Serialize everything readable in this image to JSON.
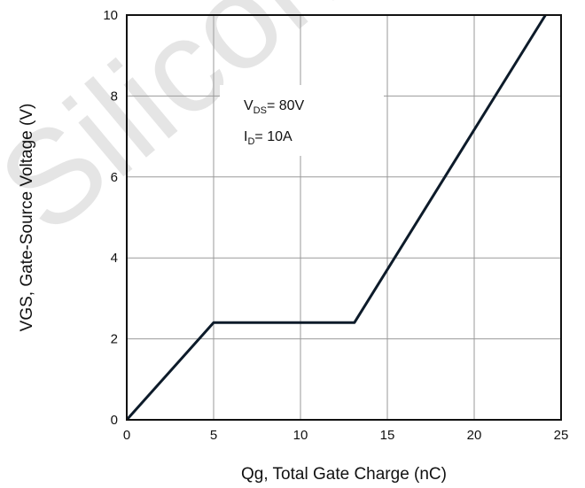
{
  "chart_data": {
    "type": "line",
    "xlabel": "Qg, Total Gate Charge (nC)",
    "ylabel": "VGS, Gate-Source Voltage (V)",
    "xlim": [
      0,
      25
    ],
    "ylim": [
      0,
      10
    ],
    "x_ticks": [
      0,
      5,
      10,
      15,
      20,
      25
    ],
    "y_ticks": [
      0,
      2,
      4,
      6,
      8,
      10
    ],
    "grid": true,
    "series": [
      {
        "x": [
          0,
          5,
          13.1,
          24.1
        ],
        "y": [
          0,
          2.4,
          2.4,
          10
        ]
      }
    ],
    "annotations": [
      {
        "main": "V",
        "sub": "DS",
        "value": "= 80V"
      },
      {
        "main": "I",
        "sub": "D",
        "value": "=  10A"
      }
    ],
    "colors": {
      "line": "#0d1b2a",
      "grid": "#9a9a9a",
      "frame": "#111111"
    }
  },
  "watermark": {
    "text": "Silicon",
    "color": "#d0d0d0"
  }
}
